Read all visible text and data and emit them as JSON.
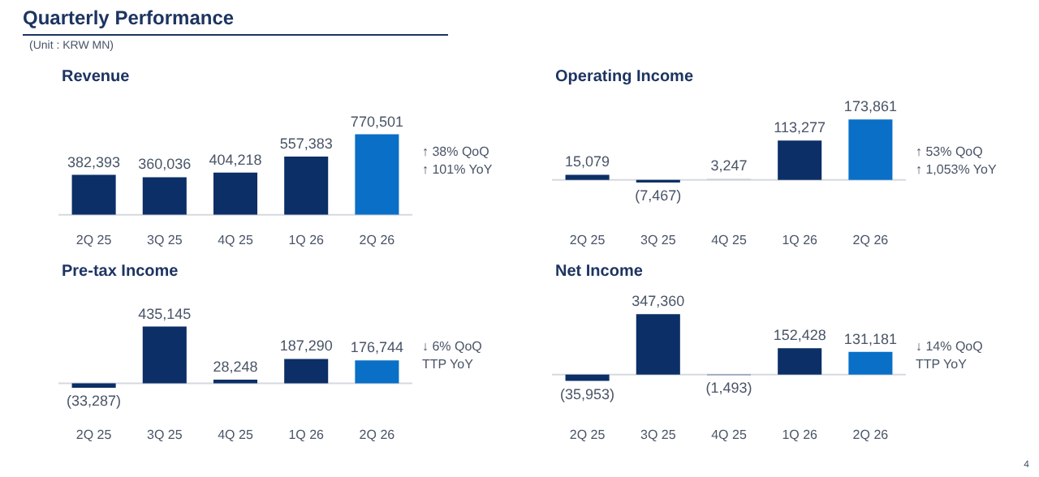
{
  "chart_data": [
    {
      "type": "other",
      "title": "Quarterly Performance",
      "annotations": [
        "(Unit : KRW MN)",
        "4"
      ]
    },
    {
      "type": "bar",
      "title": "Revenue",
      "categories": [
        "2Q 25",
        "3Q 25",
        "4Q 25",
        "1Q 26",
        "2Q 26"
      ],
      "values": [
        382393,
        360036,
        404218,
        557383,
        770501
      ],
      "colors": [
        "#0b2f66",
        "#0b2f66",
        "#0b2f66",
        "#0b2f66",
        "#0a6fc6"
      ],
      "value_labels": [
        "382,393",
        "360,036",
        "404,218",
        "557,383",
        "770,501"
      ],
      "annotations": [
        "↑ 38% QoQ",
        "↑ 101% YoY"
      ]
    },
    {
      "type": "bar",
      "title": "Operating Income",
      "categories": [
        "2Q 25",
        "3Q 25",
        "4Q 25",
        "1Q 26",
        "2Q 26"
      ],
      "values": [
        15079,
        -7467,
        3247,
        113277,
        173861
      ],
      "colors": [
        "#0b2f66",
        "#0b2f66",
        "#c5ccd8",
        "#0b2f66",
        "#0a6fc6"
      ],
      "value_labels": [
        "15,079",
        "(7,467)",
        "3,247",
        "113,277",
        "173,861"
      ],
      "annotations": [
        "↑ 53% QoQ",
        "↑ 1,053% YoY"
      ]
    },
    {
      "type": "bar",
      "title": "Pre-tax Income",
      "categories": [
        "2Q 25",
        "3Q 25",
        "4Q 25",
        "1Q 26",
        "2Q 26"
      ],
      "values": [
        -33287,
        435145,
        28248,
        187290,
        176744
      ],
      "colors": [
        "#0b2f66",
        "#0b2f66",
        "#0b2f66",
        "#0b2f66",
        "#0a6fc6"
      ],
      "value_labels": [
        "(33,287)",
        "435,145",
        "28,248",
        "187,290",
        "176,744"
      ],
      "annotations": [
        "↓ 6% QoQ",
        "TTP YoY"
      ]
    },
    {
      "type": "bar",
      "title": "Net Income",
      "categories": [
        "2Q 25",
        "3Q 25",
        "4Q 25",
        "1Q 26",
        "2Q 26"
      ],
      "values": [
        -35953,
        347360,
        -1493,
        152428,
        131181
      ],
      "colors": [
        "#0b2f66",
        "#0b2f66",
        "#0b2f66",
        "#0b2f66",
        "#0a6fc6"
      ],
      "value_labels": [
        "(35,953)",
        "347,360",
        "(1,493)",
        "152,428",
        "131,181"
      ],
      "annotations": [
        "↓ 14% QoQ",
        "TTP YoY"
      ]
    }
  ]
}
